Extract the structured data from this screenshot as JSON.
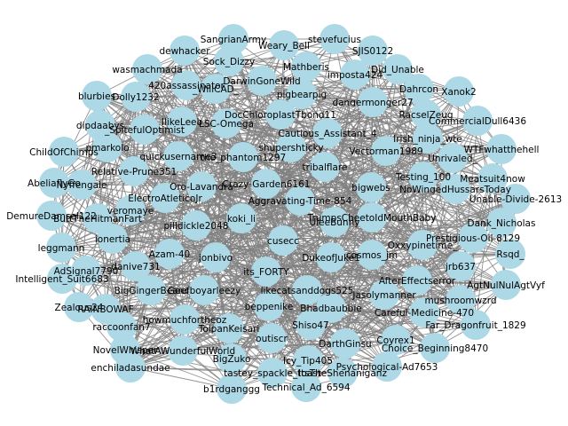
{
  "colors": {
    "background": "#ffffff",
    "edge": "#808080",
    "node": "#add8e6",
    "label": "#000000"
  },
  "graph": {
    "nodes": [
      "SangrianArmy",
      "Weary_Bell",
      "stevefucius",
      "dewhacker",
      "SJIS0122",
      "Sock_Dizzy",
      "Mathberis",
      "wasmachmada",
      "Did_Unable",
      "_WillCAD_",
      "DarwinGoneWild",
      "imposta424",
      "420assassinator",
      "Dahrcon",
      "Xanok2",
      "pigbearpig",
      "blurbies",
      "Dolly1232",
      "dangermonger27",
      "RacselZeug",
      "CommercialDull6436",
      "IlikeLeeb",
      "LSC-Omega",
      "DocChloroplastTbond11",
      "dipdaabys",
      "_SpitefulOptimist",
      "Cautious_Assistant_4",
      "Irish_ninja_wte",
      "pmarkolo",
      "ChildOfChimps",
      "shupershticky",
      "WTFwhatthehell",
      "Unrivaled_",
      "Vectorman1989",
      "quickusername3",
      "the_phantom1297",
      "tribalflare",
      "AbeliaflyGo",
      "Relative-Prune351",
      "Meatsuit4now",
      "Testing_100",
      "Nyffengale",
      "Oro-Lavandra",
      "Crazy-Garden6161",
      "bigwebs",
      "NoWingedHussarsToday",
      "Unable-Divide-2613",
      "ElectroAtleticoJr",
      "DemureDamsel122",
      "ButtTheHitmanFart",
      "Aggravating-Time-854",
      "koki_li",
      "TrumpsCheetoIdMouthBaby",
      "veromaye",
      "UleeBunny",
      "Dank_Nicholas",
      "pilldickle2048",
      "ionertia",
      "Prestigious-Oil-8129",
      "leggmann",
      "cusecc",
      "Oxxypinetime_",
      "Azam-40",
      "Rsqd_",
      "jonbivo",
      "DukeofJuke1",
      "cosmos_jm",
      "jrb637",
      "AdSignal7790",
      "danive731",
      "Intelligent_Suit6683",
      "its_FORTY",
      "AfterEffectserror",
      "AgtNulNulAgtVyf",
      "BigGingerBeard",
      "likecatsanddogs525",
      "Geefboyarleezy",
      "Zealous24",
      "RAINBOWAF",
      "beppenike",
      "Jasolymanner",
      "Bhadbaubbie",
      "mushroomwzrd",
      "Careful-Medicine-470",
      "howmuchfortheoz",
      "raccoonfan7",
      "TolpanKeisari",
      "Shiso47",
      "Far_Dragonfruit_1829",
      "outiscr",
      "Coyrex1",
      "DarthGinsu",
      "NovelWhisper",
      "WhatAWunderfulWorld",
      "Choice_Beginning8470",
      "enchiladasundae",
      "BigZuko",
      "Icy_Tip405",
      "Psychological-Ad7653",
      "ItsTheShenaniganz",
      "tastey_spackle_toast",
      "b1rdganggg",
      "Technical_Ad_6594"
    ]
  }
}
